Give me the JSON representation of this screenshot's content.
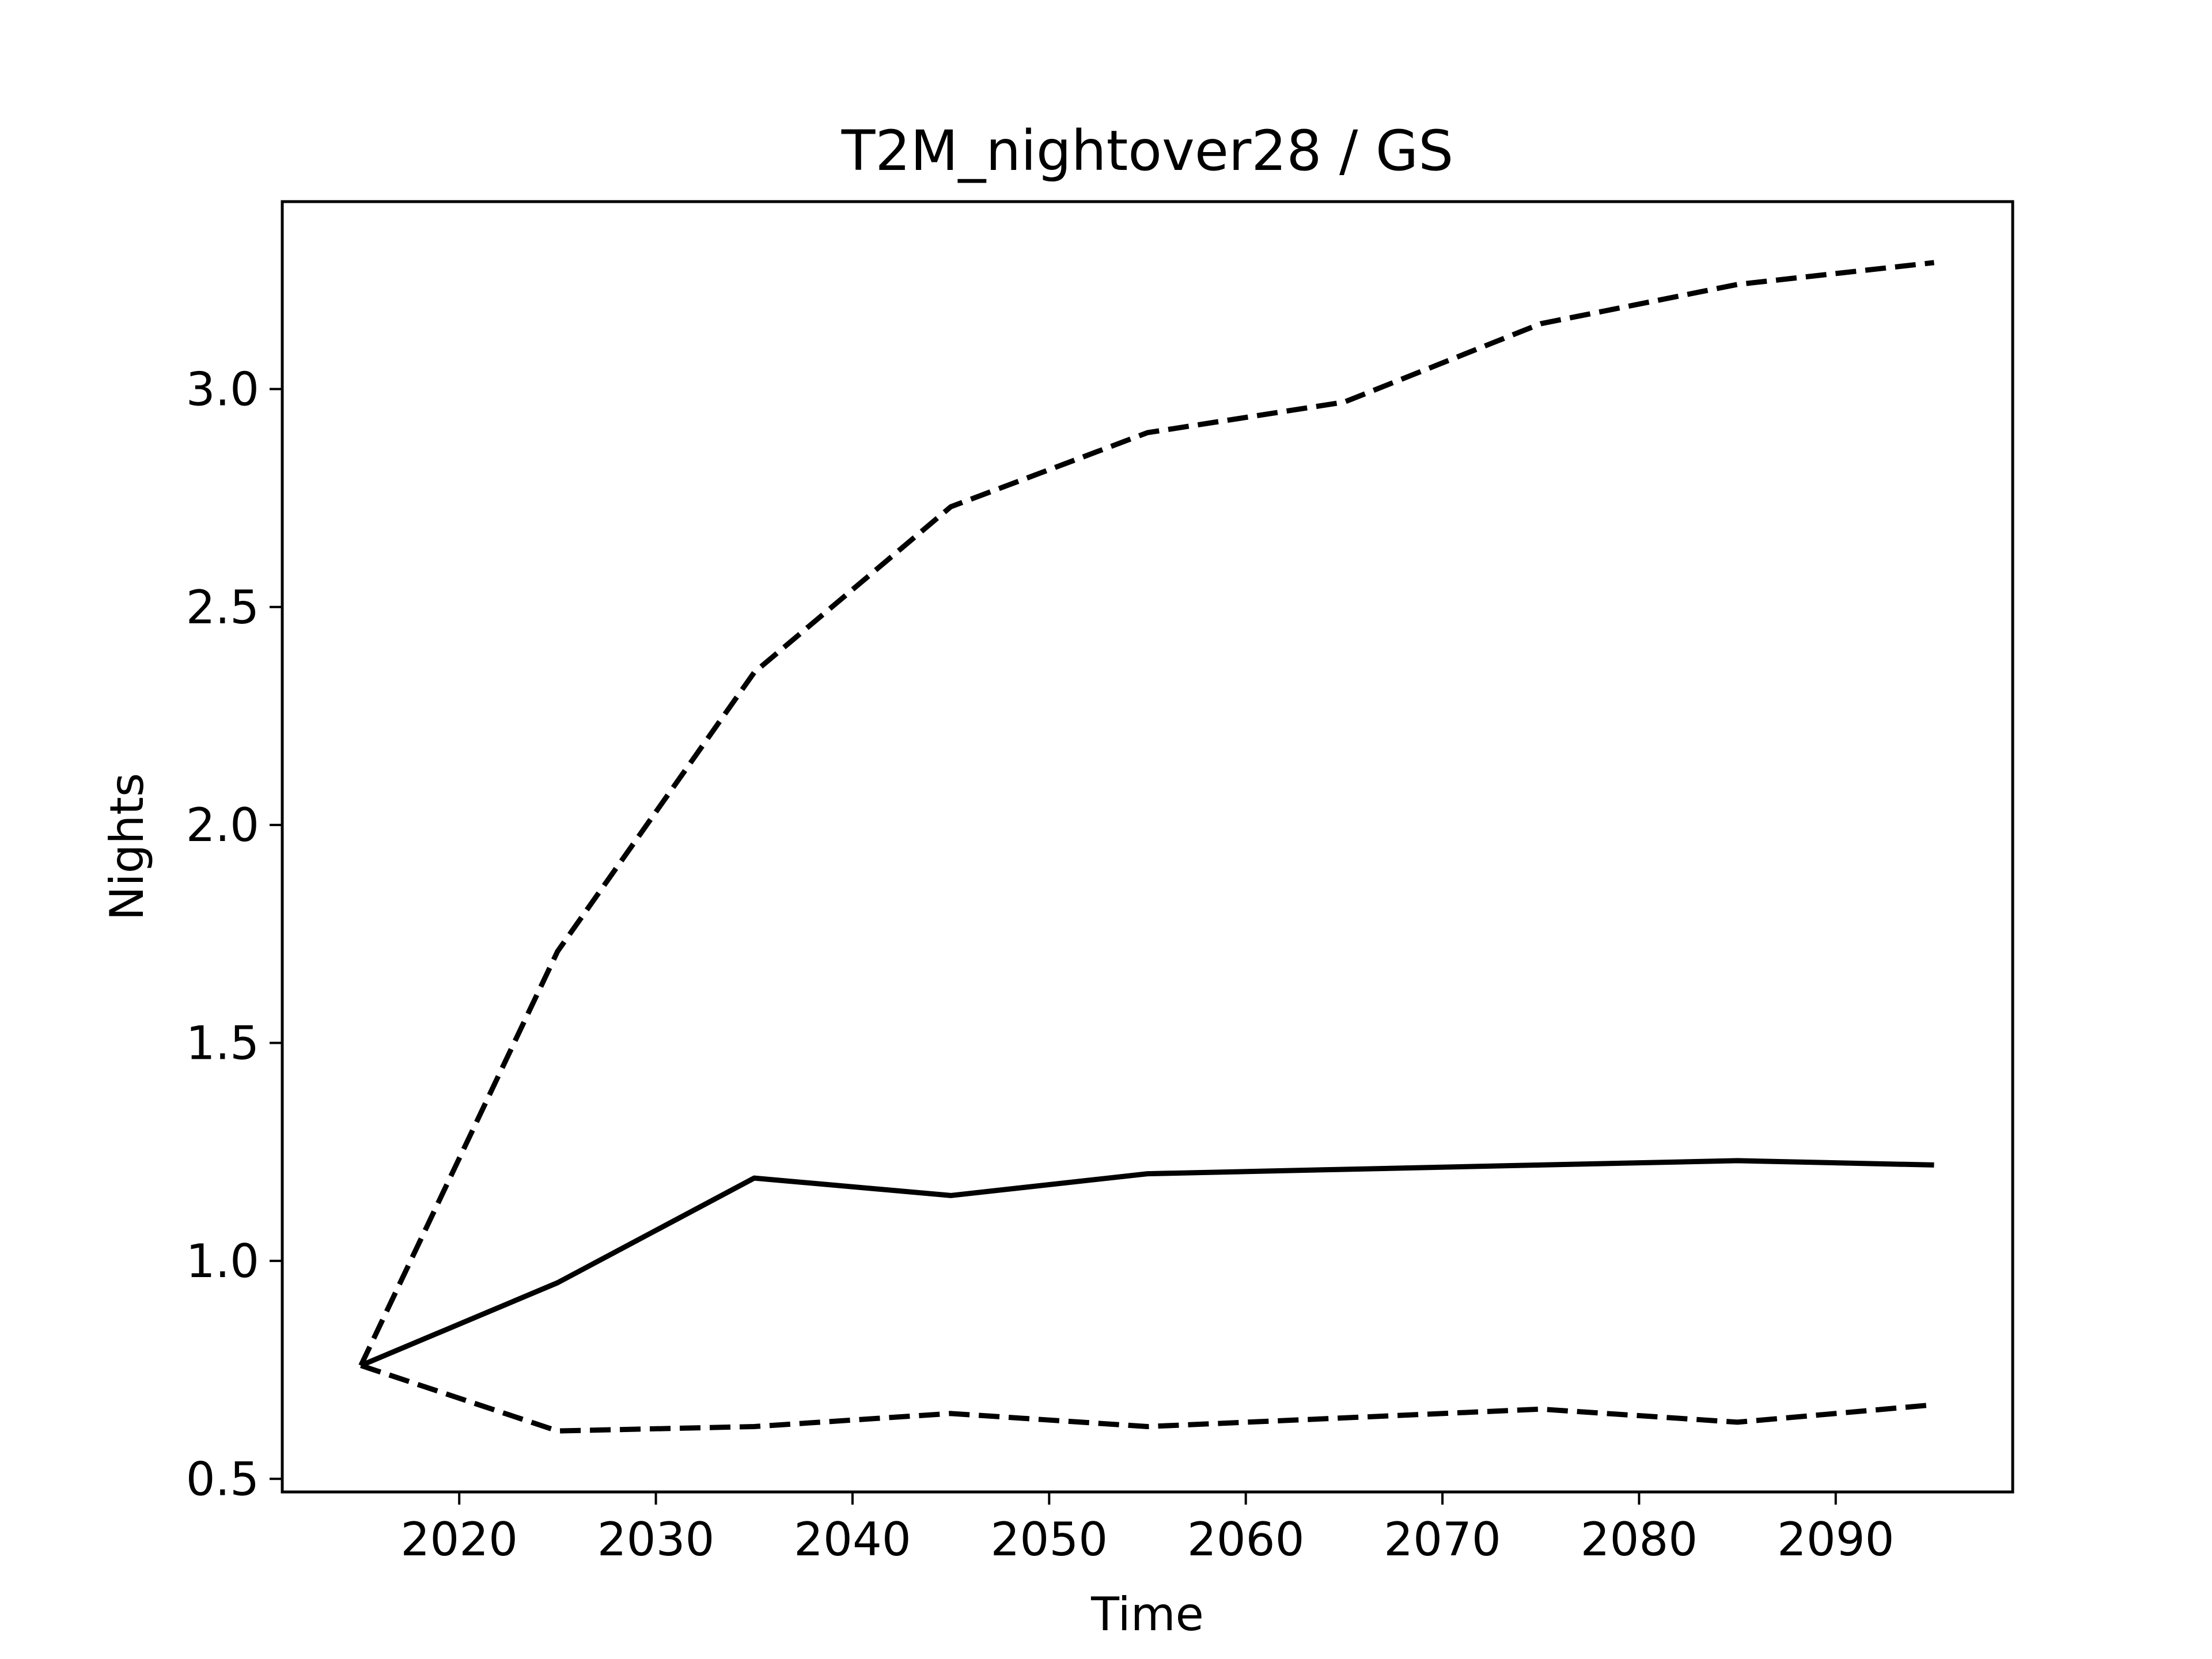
{
  "chart_data": {
    "type": "line",
    "title": "T2M_nightover28 / GS",
    "xlabel": "Time",
    "ylabel": "Nights",
    "xlim": [
      2011,
      2099
    ],
    "ylim": [
      0.47,
      3.43
    ],
    "xticks": [
      2020,
      2030,
      2040,
      2050,
      2060,
      2070,
      2080,
      2090
    ],
    "yticks": [
      0.5,
      1.0,
      1.5,
      2.0,
      2.5,
      3.0
    ],
    "xtick_labels": [
      "2020",
      "2030",
      "2040",
      "2050",
      "2060",
      "2070",
      "2080",
      "2090"
    ],
    "ytick_labels": [
      "0.5",
      "1.0",
      "1.5",
      "2.0",
      "2.5",
      "3.0"
    ],
    "grid": false,
    "legend": "none",
    "x": [
      2015,
      2025,
      2035,
      2045,
      2055,
      2065,
      2075,
      2085,
      2095
    ],
    "series": [
      {
        "values": [
          0.76,
          1.71,
          2.35,
          2.73,
          2.9,
          2.97,
          3.15,
          3.24,
          3.29
        ],
        "style": "dashed",
        "color": "#000000"
      },
      {
        "values": [
          0.76,
          0.95,
          1.19,
          1.15,
          1.2,
          1.21,
          1.22,
          1.23,
          1.22
        ],
        "style": "solid",
        "color": "#000000"
      },
      {
        "values": [
          0.76,
          0.61,
          0.62,
          0.65,
          0.62,
          0.64,
          0.66,
          0.63,
          0.67
        ],
        "style": "dashed",
        "color": "#000000"
      }
    ]
  }
}
